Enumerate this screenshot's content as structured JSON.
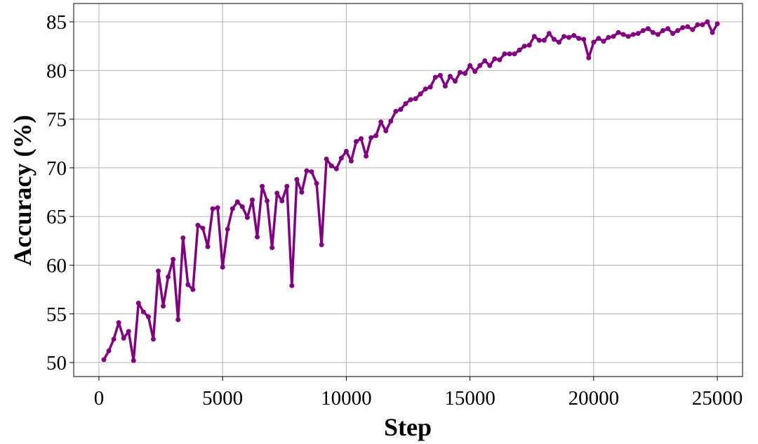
{
  "chart_data": {
    "type": "line",
    "x_label": "Step",
    "y_label": "Accuracy (%)",
    "x": [
      200,
      400,
      600,
      800,
      1000,
      1200,
      1400,
      1600,
      1800,
      2000,
      2200,
      2400,
      2600,
      2800,
      3000,
      3200,
      3400,
      3600,
      3800,
      4000,
      4200,
      4400,
      4600,
      4800,
      5000,
      5200,
      5400,
      5600,
      5800,
      6000,
      6200,
      6400,
      6600,
      6800,
      7000,
      7200,
      7400,
      7600,
      7800,
      8000,
      8200,
      8400,
      8600,
      8800,
      9000,
      9200,
      9400,
      9600,
      9800,
      10000,
      10200,
      10400,
      10600,
      10800,
      11000,
      11200,
      11400,
      11600,
      11800,
      12000,
      12200,
      12400,
      12600,
      12800,
      13000,
      13200,
      13400,
      13600,
      13800,
      14000,
      14200,
      14400,
      14600,
      14800,
      15000,
      15200,
      15400,
      15600,
      15800,
      16000,
      16200,
      16400,
      16600,
      16800,
      17000,
      17200,
      17400,
      17600,
      17800,
      18000,
      18200,
      18400,
      18600,
      18800,
      19000,
      19200,
      19400,
      19600,
      19800,
      20000,
      20200,
      20400,
      20600,
      20800,
      21000,
      21200,
      21400,
      21600,
      21800,
      22000,
      22200,
      22400,
      22600,
      22800,
      23000,
      23200,
      23400,
      23600,
      23800,
      24000,
      24200,
      24400,
      24600,
      24800,
      25000
    ],
    "series": [
      {
        "name": "Accuracy",
        "color": "#800080",
        "values": [
          50.3,
          51.2,
          52.4,
          54.1,
          52.5,
          53.2,
          50.2,
          56.1,
          55.2,
          54.7,
          52.4,
          59.4,
          55.8,
          58.8,
          60.6,
          54.4,
          62.8,
          58.0,
          57.5,
          64.1,
          63.8,
          61.9,
          65.8,
          65.9,
          59.8,
          63.7,
          65.8,
          66.5,
          66.0,
          64.9,
          66.7,
          62.9,
          68.1,
          66.6,
          61.8,
          67.4,
          66.6,
          68.1,
          57.9,
          68.8,
          67.5,
          69.7,
          69.6,
          68.4,
          62.1,
          70.9,
          70.2,
          69.9,
          71.0,
          71.7,
          70.7,
          72.7,
          73.0,
          71.2,
          73.1,
          73.3,
          74.7,
          73.8,
          74.8,
          75.8,
          76.0,
          76.6,
          77.0,
          77.1,
          77.6,
          78.1,
          78.3,
          79.3,
          79.5,
          78.4,
          79.4,
          78.9,
          79.8,
          79.7,
          80.5,
          79.9,
          80.5,
          81.0,
          80.5,
          81.2,
          81.1,
          81.7,
          81.7,
          81.7,
          82.1,
          82.5,
          82.6,
          83.5,
          83.1,
          83.1,
          83.8,
          83.2,
          82.9,
          83.5,
          83.4,
          83.6,
          83.3,
          83.2,
          81.3,
          82.9,
          83.3,
          83.0,
          83.4,
          83.5,
          83.9,
          83.7,
          83.5,
          83.7,
          83.8,
          84.1,
          84.3,
          83.9,
          83.7,
          84.1,
          84.3,
          83.8,
          84.1,
          84.4,
          84.5,
          84.2,
          84.7,
          84.7,
          85.0,
          83.9,
          84.8
        ]
      }
    ],
    "xlim": [
      -1020,
      26020
    ],
    "ylim": [
      48.56,
      86.88
    ],
    "xticks": [
      0,
      5000,
      10000,
      15000,
      20000,
      25000
    ],
    "yticks": [
      50,
      55,
      60,
      65,
      70,
      75,
      80,
      85
    ],
    "grid": true,
    "markers": true
  }
}
